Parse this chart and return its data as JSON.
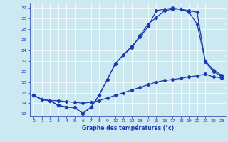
{
  "xlabel": "Graphe des températures (°c)",
  "bg_color": "#cce8f0",
  "line_color": "#1a3ab0",
  "marker": "D",
  "markersize": 2.2,
  "linewidth": 0.9,
  "ylim": [
    11.5,
    33
  ],
  "xlim": [
    -0.5,
    23.5
  ],
  "yticks": [
    12,
    14,
    16,
    18,
    20,
    22,
    24,
    26,
    28,
    30,
    32
  ],
  "xticks": [
    0,
    1,
    2,
    3,
    4,
    5,
    6,
    7,
    8,
    9,
    10,
    11,
    12,
    13,
    14,
    15,
    16,
    17,
    18,
    19,
    20,
    21,
    22,
    23
  ],
  "series": [
    {
      "x": [
        0,
        1,
        2,
        3,
        4,
        5,
        6,
        7,
        8,
        9,
        10,
        11,
        12,
        13,
        14,
        15,
        16,
        17,
        18,
        19,
        20,
        21,
        22,
        23
      ],
      "y": [
        15.5,
        14.7,
        14.5,
        13.6,
        13.3,
        13.2,
        12.1,
        13.2,
        15.5,
        18.5,
        21.5,
        23.2,
        24.8,
        26.5,
        28.5,
        31.5,
        31.8,
        32.0,
        31.8,
        31.5,
        31.2,
        21.8,
        20.0,
        19.0
      ]
    },
    {
      "x": [
        0,
        1,
        2,
        3,
        4,
        5,
        6,
        7,
        8,
        9,
        10,
        11,
        12,
        13,
        14,
        15,
        16,
        17,
        18,
        19,
        20,
        21,
        22,
        23
      ],
      "y": [
        15.5,
        14.7,
        14.5,
        13.6,
        13.3,
        13.2,
        12.1,
        13.2,
        15.5,
        18.5,
        21.5,
        23.2,
        24.5,
        26.8,
        29.0,
        30.2,
        31.5,
        31.8,
        31.8,
        31.2,
        29.0,
        22.0,
        20.3,
        19.3
      ]
    },
    {
      "x": [
        0,
        1,
        2,
        3,
        4,
        5,
        6,
        7,
        8,
        9,
        10,
        11,
        12,
        13,
        14,
        15,
        16,
        17,
        18,
        19,
        20,
        21,
        22,
        23
      ],
      "y": [
        15.5,
        14.7,
        14.5,
        14.5,
        14.3,
        14.2,
        14.0,
        14.2,
        14.5,
        15.0,
        15.5,
        16.0,
        16.5,
        17.0,
        17.5,
        18.0,
        18.3,
        18.5,
        18.7,
        19.0,
        19.2,
        19.5,
        19.0,
        18.8
      ]
    }
  ]
}
